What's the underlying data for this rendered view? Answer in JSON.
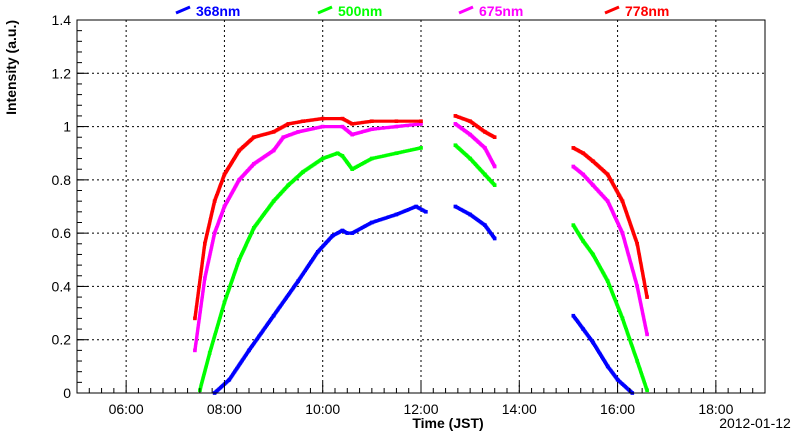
{
  "chart_data": {
    "type": "scatter",
    "title": "",
    "xlabel": "Time (JST)",
    "ylabel": "Intensity (a.u.)",
    "date_label": "2012-01-12",
    "xlim": [
      5.0,
      19.0
    ],
    "ylim": [
      0,
      1.4
    ],
    "x_ticks": [
      {
        "value": 6,
        "label": "06:00"
      },
      {
        "value": 8,
        "label": "08:00"
      },
      {
        "value": 10,
        "label": "10:00"
      },
      {
        "value": 12,
        "label": "12:00"
      },
      {
        "value": 14,
        "label": "14:00"
      },
      {
        "value": 16,
        "label": "16:00"
      },
      {
        "value": 18,
        "label": "18:00"
      }
    ],
    "y_ticks": [
      {
        "value": 0,
        "label": "0"
      },
      {
        "value": 0.2,
        "label": "0.2"
      },
      {
        "value": 0.4,
        "label": "0.4"
      },
      {
        "value": 0.6,
        "label": "0.6"
      },
      {
        "value": 0.8,
        "label": "0.8"
      },
      {
        "value": 1.0,
        "label": "1"
      },
      {
        "value": 1.2,
        "label": "1.2"
      },
      {
        "value": 1.4,
        "label": "1.4"
      }
    ],
    "grid": true,
    "legend_position": "top",
    "series": [
      {
        "name": "368nm",
        "color": "#0000ff",
        "points": [
          [
            7.8,
            0.0
          ],
          [
            8.1,
            0.05
          ],
          [
            8.5,
            0.16
          ],
          [
            9.0,
            0.29
          ],
          [
            9.5,
            0.42
          ],
          [
            9.9,
            0.53
          ],
          [
            10.2,
            0.59
          ],
          [
            10.4,
            0.61
          ],
          [
            10.5,
            0.6
          ],
          [
            10.6,
            0.6
          ],
          [
            11.0,
            0.64
          ],
          [
            11.5,
            0.67
          ],
          [
            11.9,
            0.7
          ],
          [
            12.1,
            0.68
          ],
          [
            12.7,
            0.7
          ],
          [
            13.0,
            0.67
          ],
          [
            13.3,
            0.63
          ],
          [
            13.5,
            0.58
          ],
          [
            15.1,
            0.29
          ],
          [
            15.3,
            0.24
          ],
          [
            15.5,
            0.19
          ],
          [
            15.8,
            0.1
          ],
          [
            16.0,
            0.05
          ],
          [
            16.3,
            0.0
          ]
        ]
      },
      {
        "name": "500nm",
        "color": "#00ff00",
        "points": [
          [
            7.5,
            0.01
          ],
          [
            7.7,
            0.15
          ],
          [
            8.0,
            0.34
          ],
          [
            8.3,
            0.5
          ],
          [
            8.6,
            0.62
          ],
          [
            9.0,
            0.72
          ],
          [
            9.3,
            0.78
          ],
          [
            9.6,
            0.83
          ],
          [
            10.0,
            0.88
          ],
          [
            10.3,
            0.9
          ],
          [
            10.4,
            0.89
          ],
          [
            10.6,
            0.84
          ],
          [
            11.0,
            0.88
          ],
          [
            11.5,
            0.9
          ],
          [
            12.0,
            0.92
          ],
          [
            12.7,
            0.93
          ],
          [
            13.0,
            0.88
          ],
          [
            13.3,
            0.82
          ],
          [
            13.5,
            0.78
          ],
          [
            15.1,
            0.63
          ],
          [
            15.3,
            0.57
          ],
          [
            15.5,
            0.52
          ],
          [
            15.8,
            0.42
          ],
          [
            16.1,
            0.28
          ],
          [
            16.4,
            0.12
          ],
          [
            16.6,
            0.01
          ]
        ]
      },
      {
        "name": "675nm",
        "color": "#ff00ff",
        "points": [
          [
            7.4,
            0.16
          ],
          [
            7.6,
            0.43
          ],
          [
            7.8,
            0.6
          ],
          [
            8.0,
            0.7
          ],
          [
            8.3,
            0.8
          ],
          [
            8.6,
            0.86
          ],
          [
            9.0,
            0.91
          ],
          [
            9.2,
            0.96
          ],
          [
            9.5,
            0.98
          ],
          [
            10.0,
            1.0
          ],
          [
            10.4,
            1.0
          ],
          [
            10.6,
            0.97
          ],
          [
            11.0,
            0.99
          ],
          [
            11.5,
            1.0
          ],
          [
            12.0,
            1.01
          ],
          [
            12.7,
            1.01
          ],
          [
            13.0,
            0.97
          ],
          [
            13.3,
            0.92
          ],
          [
            13.5,
            0.85
          ],
          [
            15.1,
            0.85
          ],
          [
            15.3,
            0.82
          ],
          [
            15.5,
            0.78
          ],
          [
            15.8,
            0.72
          ],
          [
            16.1,
            0.6
          ],
          [
            16.4,
            0.4
          ],
          [
            16.6,
            0.22
          ]
        ]
      },
      {
        "name": "778nm",
        "color": "#ff0000",
        "points": [
          [
            7.4,
            0.28
          ],
          [
            7.6,
            0.56
          ],
          [
            7.8,
            0.72
          ],
          [
            8.0,
            0.82
          ],
          [
            8.3,
            0.91
          ],
          [
            8.6,
            0.96
          ],
          [
            9.0,
            0.98
          ],
          [
            9.3,
            1.01
          ],
          [
            9.6,
            1.02
          ],
          [
            10.0,
            1.03
          ],
          [
            10.4,
            1.03
          ],
          [
            10.6,
            1.01
          ],
          [
            11.0,
            1.02
          ],
          [
            11.5,
            1.02
          ],
          [
            12.0,
            1.02
          ],
          [
            12.7,
            1.04
          ],
          [
            13.0,
            1.02
          ],
          [
            13.3,
            0.98
          ],
          [
            13.5,
            0.96
          ],
          [
            15.1,
            0.92
          ],
          [
            15.3,
            0.9
          ],
          [
            15.5,
            0.87
          ],
          [
            15.8,
            0.82
          ],
          [
            16.1,
            0.72
          ],
          [
            16.4,
            0.56
          ],
          [
            16.6,
            0.36
          ]
        ]
      }
    ]
  }
}
